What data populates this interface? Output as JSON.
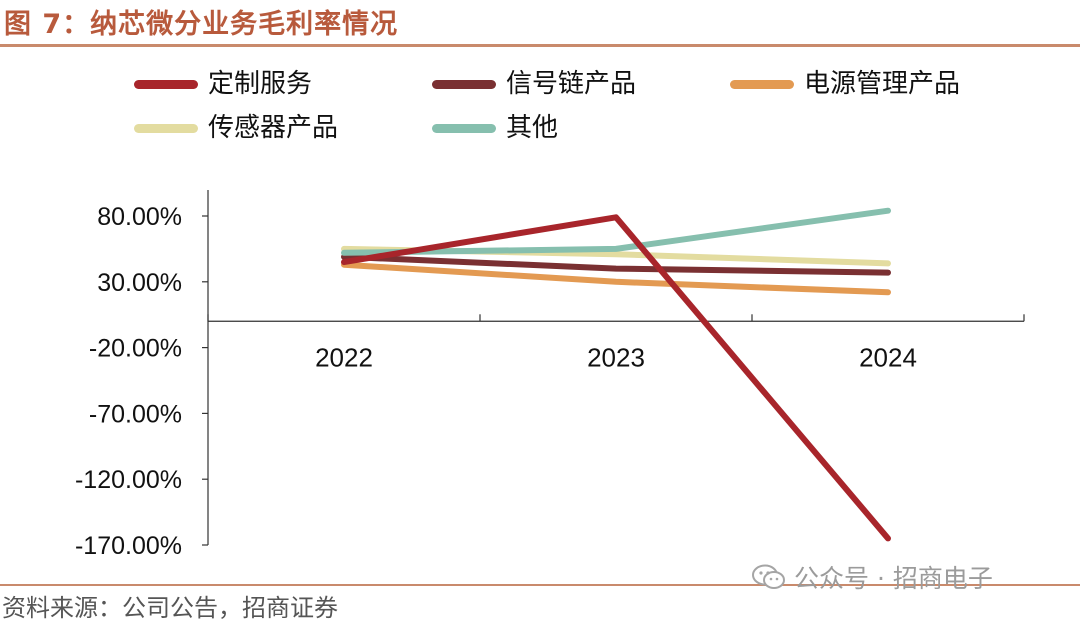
{
  "figure": {
    "title": "图 7：纳芯微分业务毛利率情况",
    "source": "资料来源：公司公告，招商证券",
    "watermark": "公众号 · 招商电子"
  },
  "chart_data": {
    "type": "line",
    "title": "",
    "xlabel": "",
    "ylabel": "",
    "categories": [
      "2022",
      "2023",
      "2024"
    ],
    "yticks": [
      "80.00%",
      "30.00%",
      "-20.00%",
      "-70.00%",
      "-120.00%",
      "-170.00%"
    ],
    "ylim": [
      -170,
      80
    ],
    "grid": false,
    "legend_position": "top",
    "series": [
      {
        "name": "定制服务",
        "color": "#a8252b",
        "values": [
          45,
          79,
          -165
        ]
      },
      {
        "name": "信号链产品",
        "color": "#7a3032",
        "values": [
          49,
          40,
          37
        ]
      },
      {
        "name": "电源管理产品",
        "color": "#e39a52",
        "values": [
          43,
          30,
          22
        ]
      },
      {
        "name": "传感器产品",
        "color": "#e3dca0",
        "values": [
          55,
          51,
          44
        ]
      },
      {
        "name": "其他",
        "color": "#86bfae",
        "values": [
          52,
          55,
          84
        ]
      }
    ]
  }
}
